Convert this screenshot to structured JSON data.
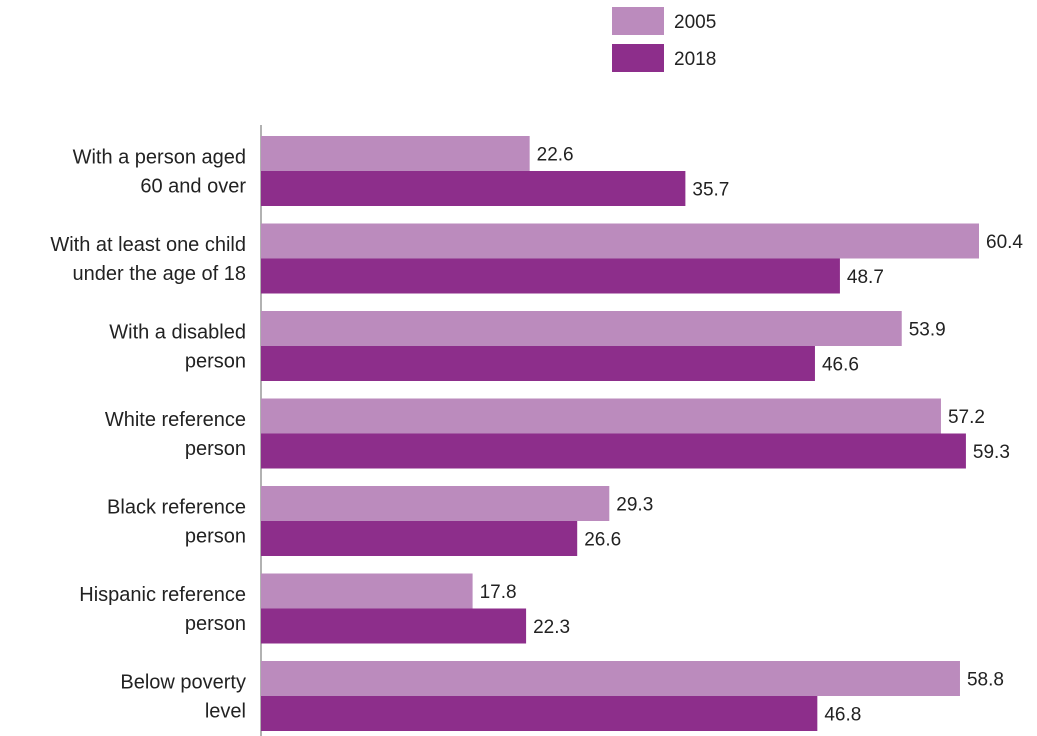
{
  "chart_data": {
    "type": "bar",
    "orientation": "horizontal",
    "title": "",
    "xlabel": "",
    "ylabel": "",
    "categories": [
      [
        "With a person aged",
        "60 and over"
      ],
      [
        "With at least one child",
        "under the age of 18"
      ],
      [
        "With a disabled",
        "person"
      ],
      [
        "White reference",
        "person"
      ],
      [
        "Black reference",
        "person"
      ],
      [
        "Hispanic reference",
        "person"
      ],
      [
        "Below poverty",
        "level"
      ]
    ],
    "series": [
      {
        "name": "2005",
        "color": "#bb8bbd",
        "values": [
          22.6,
          60.4,
          53.9,
          57.2,
          29.3,
          17.8,
          58.8
        ]
      },
      {
        "name": "2018",
        "color": "#8d2e8b",
        "values": [
          35.7,
          48.7,
          46.6,
          59.3,
          26.6,
          22.3,
          46.8
        ]
      }
    ],
    "xlim": [
      0,
      60.4
    ],
    "grid": false,
    "legend": "top-center"
  }
}
